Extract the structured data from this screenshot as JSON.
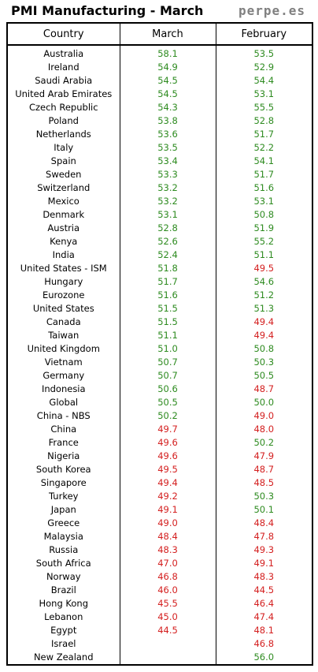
{
  "title": "PMI Manufacturing - March",
  "brand": "perpe.es",
  "colors": {
    "above_50": "#2e8b20",
    "below_50": "#d42020"
  },
  "chart_data": {
    "type": "table",
    "columns": [
      "Country",
      "March",
      "February"
    ],
    "rows": [
      {
        "country": "Australia",
        "march": "58.1",
        "february": "53.5"
      },
      {
        "country": "Ireland",
        "march": "54.9",
        "february": "52.9"
      },
      {
        "country": "Saudi Arabia",
        "march": "54.5",
        "february": "54.4"
      },
      {
        "country": "United Arab Emirates",
        "march": "54.5",
        "february": "53.1"
      },
      {
        "country": "Czech Republic",
        "march": "54.3",
        "february": "55.5"
      },
      {
        "country": "Poland",
        "march": "53.8",
        "february": "52.8"
      },
      {
        "country": "Netherlands",
        "march": "53.6",
        "february": "51.7"
      },
      {
        "country": "Italy",
        "march": "53.5",
        "february": "52.2"
      },
      {
        "country": "Spain",
        "march": "53.4",
        "february": "54.1"
      },
      {
        "country": "Sweden",
        "march": "53.3",
        "february": "51.7"
      },
      {
        "country": "Switzerland",
        "march": "53.2",
        "february": "51.6"
      },
      {
        "country": "Mexico",
        "march": "53.2",
        "february": "53.1"
      },
      {
        "country": "Denmark",
        "march": "53.1",
        "february": "50.8"
      },
      {
        "country": "Austria",
        "march": "52.8",
        "february": "51.9"
      },
      {
        "country": "Kenya",
        "march": "52.6",
        "february": "55.2"
      },
      {
        "country": "India",
        "march": "52.4",
        "february": "51.1"
      },
      {
        "country": "United States - ISM",
        "march": "51.8",
        "february": "49.5"
      },
      {
        "country": "Hungary",
        "march": "51.7",
        "february": "54.6"
      },
      {
        "country": "Eurozone",
        "march": "51.6",
        "february": "51.2"
      },
      {
        "country": "United States",
        "march": "51.5",
        "february": "51.3"
      },
      {
        "country": "Canada",
        "march": "51.5",
        "february": "49.4"
      },
      {
        "country": "Taiwan",
        "march": "51.1",
        "february": "49.4"
      },
      {
        "country": "United Kingdom",
        "march": "51.0",
        "february": "50.8"
      },
      {
        "country": "Vietnam",
        "march": "50.7",
        "february": "50.3"
      },
      {
        "country": "Germany",
        "march": "50.7",
        "february": "50.5"
      },
      {
        "country": "Indonesia",
        "march": "50.6",
        "february": "48.7"
      },
      {
        "country": "Global",
        "march": "50.5",
        "february": "50.0"
      },
      {
        "country": "China - NBS",
        "march": "50.2",
        "february": "49.0"
      },
      {
        "country": "China",
        "march": "49.7",
        "february": "48.0"
      },
      {
        "country": "France",
        "march": "49.6",
        "february": "50.2"
      },
      {
        "country": "Nigeria",
        "march": "49.6",
        "february": "47.9"
      },
      {
        "country": "South Korea",
        "march": "49.5",
        "february": "48.7"
      },
      {
        "country": "Singapore",
        "march": "49.4",
        "february": "48.5"
      },
      {
        "country": "Turkey",
        "march": "49.2",
        "february": "50.3"
      },
      {
        "country": "Japan",
        "march": "49.1",
        "february": "50.1"
      },
      {
        "country": "Greece",
        "march": "49.0",
        "february": "48.4"
      },
      {
        "country": "Malaysia",
        "march": "48.4",
        "february": "47.8"
      },
      {
        "country": "Russia",
        "march": "48.3",
        "february": "49.3"
      },
      {
        "country": "South Africa",
        "march": "47.0",
        "february": "49.1"
      },
      {
        "country": "Norway",
        "march": "46.8",
        "february": "48.3"
      },
      {
        "country": "Brazil",
        "march": "46.0",
        "february": "44.5"
      },
      {
        "country": "Hong Kong",
        "march": "45.5",
        "february": "46.4"
      },
      {
        "country": "Lebanon",
        "march": "45.0",
        "february": "47.4"
      },
      {
        "country": "Egypt",
        "march": "44.5",
        "february": "48.1"
      },
      {
        "country": "Israel",
        "march": "",
        "february": "46.8"
      },
      {
        "country": "New Zealand",
        "march": "",
        "february": "56.0"
      }
    ]
  }
}
